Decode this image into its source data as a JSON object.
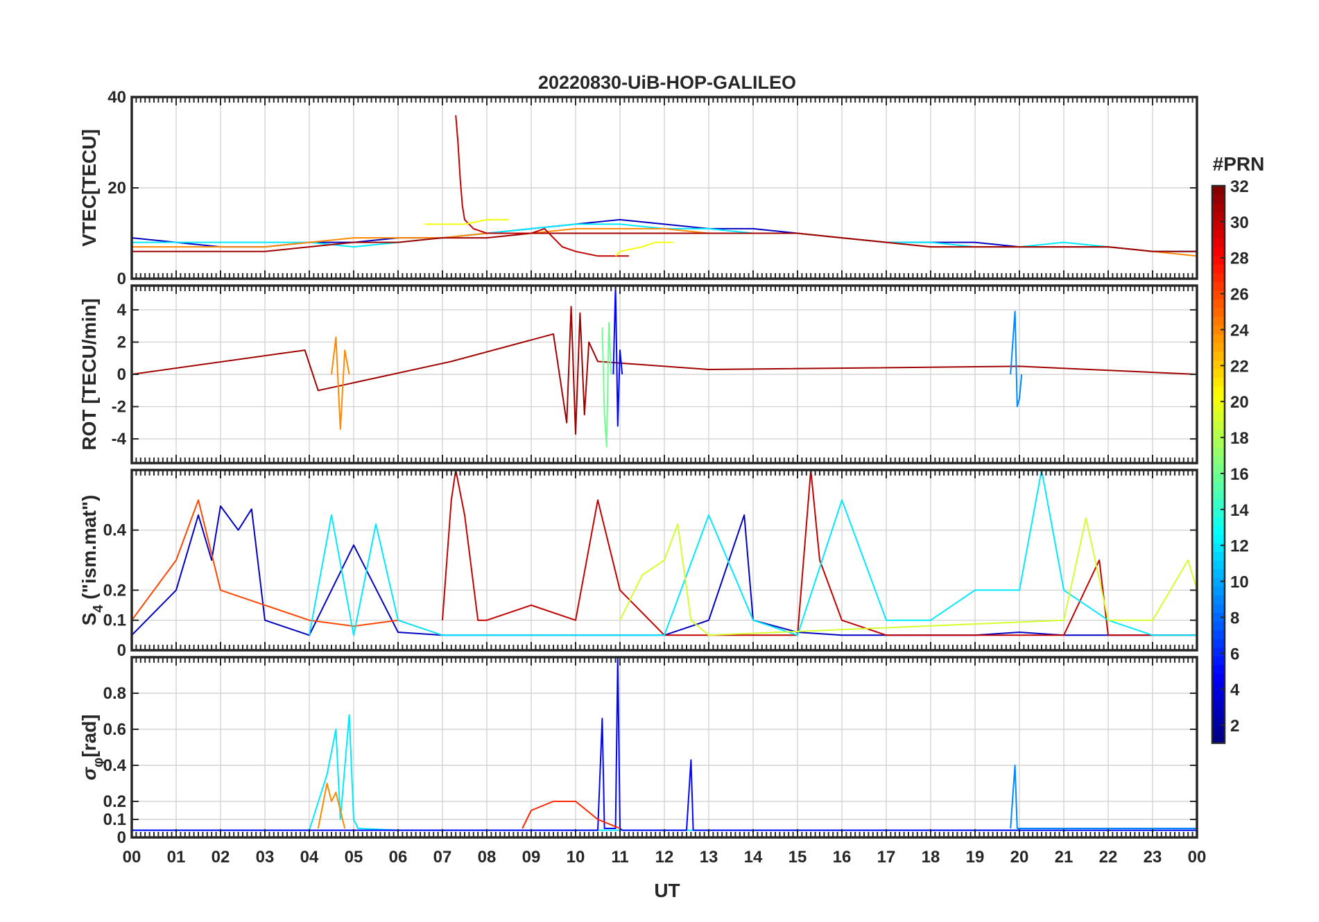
{
  "chart_data": {
    "type": "line",
    "title": "20220830-UiB-HOP-GALILEO",
    "xlabel": "UT",
    "x_ticks": [
      "00",
      "01",
      "02",
      "03",
      "04",
      "05",
      "06",
      "07",
      "08",
      "09",
      "10",
      "11",
      "12",
      "13",
      "14",
      "15",
      "16",
      "17",
      "18",
      "19",
      "20",
      "21",
      "22",
      "23",
      "00"
    ],
    "xlim": [
      0,
      24
    ],
    "colorbar": {
      "label": "#PRN",
      "range": [
        1,
        32
      ],
      "ticks": [
        "2",
        "4",
        "6",
        "8",
        "10",
        "12",
        "14",
        "16",
        "18",
        "20",
        "22",
        "24",
        "26",
        "28",
        "30",
        "32"
      ],
      "colormap": "jet",
      "colors": [
        "#00008f",
        "#0000ff",
        "#0080ff",
        "#00ffff",
        "#80ff80",
        "#ffff00",
        "#ff8000",
        "#ff0000",
        "#800000"
      ]
    },
    "panels": [
      {
        "name": "vtec",
        "ylabel": "VTEC[TECU]",
        "ylim": [
          0,
          40
        ],
        "yticks": [
          0,
          20,
          40
        ],
        "ytick_labels": [
          "0",
          "20",
          "40"
        ],
        "grid": true,
        "series": [
          {
            "prn": 3,
            "x": [
              0,
              1,
              2,
              3,
              4,
              5,
              6,
              7,
              8,
              9,
              10,
              11,
              12,
              13,
              14,
              15,
              16,
              17,
              18,
              19,
              20,
              21,
              22,
              23,
              24
            ],
            "y": [
              9,
              8,
              7,
              7,
              8,
              8,
              9,
              9,
              10,
              11,
              12,
              13,
              12,
              11,
              11,
              10,
              9,
              8,
              8,
              8,
              7,
              7,
              7,
              6,
              6
            ]
          },
          {
            "prn": 12,
            "x": [
              0,
              1,
              2,
              3,
              4,
              5,
              6,
              7,
              8,
              9,
              10,
              11,
              12,
              13,
              14,
              15,
              16,
              17,
              18,
              19,
              20,
              21,
              22,
              23,
              24
            ],
            "y": [
              8,
              8,
              8,
              8,
              8,
              7,
              8,
              9,
              10,
              11,
              12,
              12,
              11,
              11,
              10,
              10,
              9,
              8,
              8,
              7,
              7,
              8,
              7,
              6,
              6
            ]
          },
          {
            "prn": 24,
            "x": [
              0,
              1,
              2,
              3,
              4,
              5,
              6,
              7,
              8,
              9,
              10,
              11,
              12,
              13,
              14,
              15,
              16,
              17,
              18,
              19,
              20,
              21,
              22,
              23,
              24
            ],
            "y": [
              7,
              7,
              7,
              7,
              8,
              9,
              9,
              9,
              10,
              10,
              11,
              11,
              11,
              10,
              10,
              10,
              9,
              8,
              7,
              7,
              7,
              7,
              7,
              6,
              5
            ]
          },
          {
            "prn": 31,
            "x": [
              0,
              1,
              2,
              3,
              4,
              5,
              6,
              7,
              8,
              9,
              10,
              11,
              12,
              13,
              14,
              15,
              16,
              17,
              18,
              19,
              20,
              21,
              22,
              23,
              24
            ],
            "y": [
              6,
              6,
              6,
              6,
              7,
              8,
              8,
              9,
              9,
              10,
              10,
              10,
              10,
              10,
              10,
              10,
              9,
              8,
              7,
              7,
              7,
              7,
              7,
              6,
              6
            ]
          },
          {
            "prn": 30,
            "x": [
              7.3,
              7.35,
              7.4,
              7.45,
              7.5,
              7.7,
              8,
              8.5,
              9,
              9.3,
              9.5,
              9.7,
              10,
              10.5,
              11,
              11.2
            ],
            "y": [
              36,
              30,
              22,
              16,
              13,
              11,
              10,
              10,
              10,
              11,
              9,
              7,
              6,
              5,
              5,
              5
            ]
          },
          {
            "prn": 20,
            "x": [
              6.6,
              7,
              7.5,
              8,
              8.5
            ],
            "y": [
              12,
              12,
              12,
              13,
              13
            ]
          },
          {
            "prn": 20,
            "x": [
              10.9,
              11,
              11.5,
              11.8,
              12.2
            ],
            "y": [
              5,
              6,
              7,
              8,
              8
            ]
          }
        ]
      },
      {
        "name": "rot",
        "ylabel": "ROT [TECU/min]",
        "ylim": [
          -5.5,
          5.5
        ],
        "yticks": [
          -4,
          -2,
          0,
          2,
          4
        ],
        "ytick_labels": [
          "-4",
          "-2",
          "0",
          "2",
          "4"
        ],
        "grid": true,
        "series": [
          {
            "prn": 31,
            "x": [
              0,
              3.9,
              4.2,
              7.2,
              9.5,
              9.8,
              9.9,
              10,
              10.1,
              10.2,
              10.3,
              10.5,
              13,
              20,
              24
            ],
            "y": [
              0,
              1.5,
              -1,
              0.8,
              2.5,
              -3,
              4.2,
              -3.7,
              3.8,
              -2.5,
              2,
              0.8,
              0.3,
              0.5,
              0
            ]
          },
          {
            "prn": 16,
            "x": [
              10.6,
              10.65,
              10.7,
              10.75,
              10.8
            ],
            "y": [
              2.9,
              -2.5,
              -4.5,
              3.2,
              0
            ]
          },
          {
            "prn": 5,
            "x": [
              10.85,
              10.9,
              10.95,
              11,
              11.05
            ],
            "y": [
              0,
              5.5,
              -3.2,
              1.5,
              0
            ]
          },
          {
            "prn": 9,
            "x": [
              19.8,
              19.9,
              19.95,
              20,
              20.05
            ],
            "y": [
              0,
              3.9,
              -2,
              -1.5,
              0
            ]
          },
          {
            "prn": 24,
            "x": [
              4.5,
              4.6,
              4.7,
              4.8,
              4.9
            ],
            "y": [
              0,
              2.3,
              -3.4,
              1.5,
              0
            ]
          }
        ]
      },
      {
        "name": "s4",
        "ylabel": "S",
        "ylabel_sub": "4",
        "ylabel_rest": " (\"ism.mat\")",
        "ylim": [
          0,
          0.6
        ],
        "yticks": [
          0,
          0.1,
          0.2,
          0.4
        ],
        "ytick_labels": [
          "0",
          "0.1",
          "0.2",
          "0.4"
        ],
        "grid": true,
        "series": [
          {
            "prn": 3,
            "x": [
              0,
              1,
              1.5,
              1.8,
              2,
              2.4,
              2.7,
              3,
              4,
              5,
              6,
              7,
              8,
              9,
              10,
              11,
              12,
              13,
              13.8,
              14,
              15,
              16,
              17,
              18,
              19,
              20,
              21,
              22,
              23,
              24
            ],
            "y": [
              0.05,
              0.2,
              0.45,
              0.3,
              0.48,
              0.4,
              0.47,
              0.1,
              0.05,
              0.35,
              0.06,
              0.05,
              0.05,
              0.05,
              0.05,
              0.05,
              0.05,
              0.1,
              0.45,
              0.1,
              0.06,
              0.05,
              0.05,
              0.05,
              0.05,
              0.06,
              0.05,
              0.05,
              0.05,
              0.05
            ]
          },
          {
            "prn": 30,
            "x": [
              7,
              7.2,
              7.3,
              7.5,
              7.8,
              8,
              9,
              10,
              10.5,
              11,
              12,
              15,
              15.3,
              15.5,
              16,
              17,
              18,
              19,
              20,
              21,
              21.8,
              22,
              23,
              24
            ],
            "y": [
              0.1,
              0.5,
              0.6,
              0.45,
              0.1,
              0.1,
              0.15,
              0.1,
              0.5,
              0.2,
              0.05,
              0.05,
              0.6,
              0.3,
              0.1,
              0.05,
              0.05,
              0.05,
              0.05,
              0.05,
              0.3,
              0.05,
              0.05,
              0.05
            ]
          },
          {
            "prn": 26,
            "x": [
              0,
              1,
              1.5,
              2,
              3,
              4,
              5,
              6,
              7
            ],
            "y": [
              0.1,
              0.3,
              0.5,
              0.2,
              0.15,
              0.1,
              0.08,
              0.1,
              0.05
            ]
          },
          {
            "prn": 12,
            "x": [
              4,
              4.5,
              5,
              5.5,
              6,
              7,
              8,
              9,
              10,
              11,
              12,
              13,
              14,
              15,
              16,
              17,
              18,
              19,
              20,
              20.5,
              21,
              22,
              23,
              24
            ],
            "y": [
              0.05,
              0.45,
              0.05,
              0.42,
              0.1,
              0.05,
              0.05,
              0.05,
              0.05,
              0.05,
              0.05,
              0.45,
              0.1,
              0.05,
              0.5,
              0.1,
              0.1,
              0.2,
              0.2,
              0.6,
              0.2,
              0.1,
              0.05,
              0.05
            ]
          },
          {
            "prn": 19,
            "x": [
              11,
              11.5,
              12,
              12.3,
              12.6,
              13,
              21,
              21.5,
              22,
              23,
              23.8,
              24
            ],
            "y": [
              0.1,
              0.25,
              0.3,
              0.42,
              0.1,
              0.05,
              0.1,
              0.44,
              0.1,
              0.1,
              0.3,
              0.2
            ]
          }
        ]
      },
      {
        "name": "sigma-phi",
        "ylabel": "σ",
        "ylabel_sub": "φ",
        "ylabel_rest": "[rad]",
        "ylim": [
          0,
          1.0
        ],
        "yticks": [
          0,
          0.1,
          0.2,
          0.4,
          0.6,
          0.8
        ],
        "ytick_labels": [
          "0",
          "0.1",
          "0.2",
          "0.4",
          "0.6",
          "0.8"
        ],
        "grid": true,
        "series": [
          {
            "prn": 12,
            "x": [
              0,
              4,
              4.4,
              4.6,
              4.7,
              4.9,
              5,
              5.1,
              6,
              24
            ],
            "y": [
              0.04,
              0.04,
              0.35,
              0.6,
              0.1,
              0.68,
              0.1,
              0.05,
              0.04,
              0.04
            ]
          },
          {
            "prn": 5,
            "x": [
              0,
              10.5,
              10.6,
              10.65,
              10.7,
              10.9,
              10.95,
              11,
              11.05,
              12.5,
              12.6,
              12.65,
              12.7,
              24
            ],
            "y": [
              0.04,
              0.04,
              0.66,
              0.05,
              0.05,
              0.05,
              1.0,
              0.05,
              0.04,
              0.04,
              0.43,
              0.04,
              0.04,
              0.04
            ]
          },
          {
            "prn": 27,
            "x": [
              8.8,
              9,
              9.5,
              10,
              10.5,
              11
            ],
            "y": [
              0.05,
              0.15,
              0.2,
              0.2,
              0.1,
              0.05
            ]
          },
          {
            "prn": 9,
            "x": [
              19.8,
              19.9,
              19.95,
              20,
              24
            ],
            "y": [
              0.05,
              0.4,
              0.05,
              0.05,
              0.05
            ]
          },
          {
            "prn": 24,
            "x": [
              4.2,
              4.4,
              4.5,
              4.6,
              4.8
            ],
            "y": [
              0.05,
              0.3,
              0.2,
              0.25,
              0.05
            ]
          }
        ]
      }
    ]
  }
}
